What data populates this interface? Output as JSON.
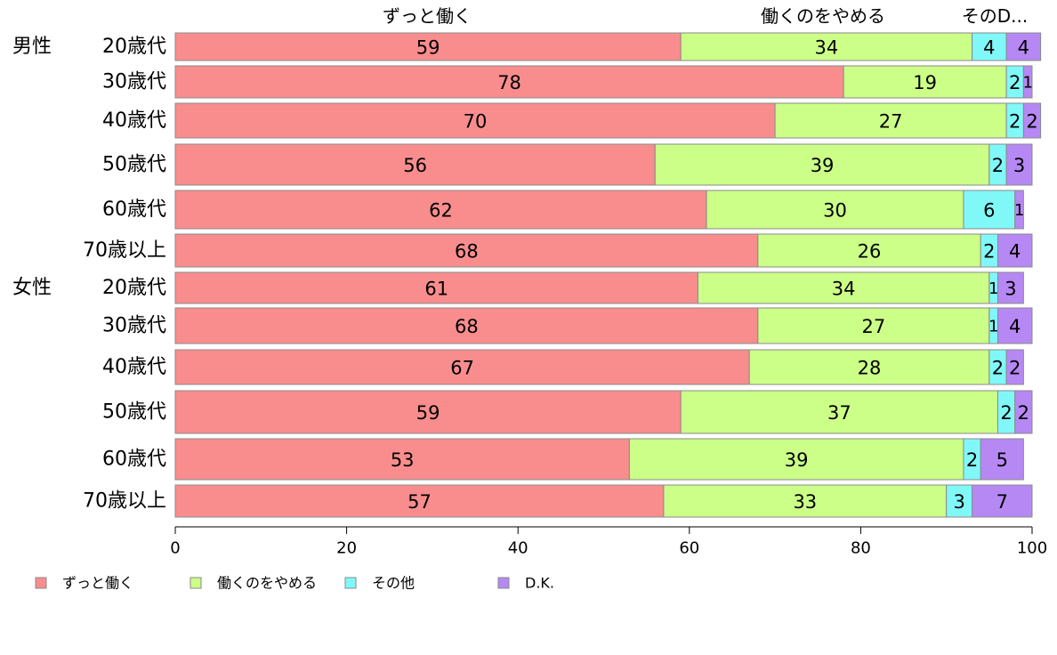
{
  "chart_data": {
    "type": "bar",
    "orientation": "horizontal",
    "stacked": true,
    "xlim": [
      0,
      100
    ],
    "xticks": [
      "0",
      "20",
      "40",
      "60",
      "80",
      "100"
    ],
    "top_labels": [
      "ずっと働く",
      "働くのをやめる",
      "そのD..."
    ],
    "groups": [
      {
        "name": "男性",
        "row_index": 0
      },
      {
        "name": "女性",
        "row_index": 6
      }
    ],
    "categories": [
      "20歳代",
      "30歳代",
      "40歳代",
      "50歳代",
      "60歳代",
      "70歳以上",
      "20歳代",
      "30歳代",
      "40歳代",
      "50歳代",
      "60歳代",
      "70歳以上"
    ],
    "series": [
      {
        "name": "ずっと働く",
        "color": "#f98d8d",
        "values": [
          59,
          78,
          70,
          56,
          62,
          68,
          61,
          68,
          67,
          59,
          53,
          57
        ],
        "labels": [
          "59",
          "78",
          "70",
          "56",
          "62",
          "68",
          "61",
          "68",
          "67",
          "59",
          "53",
          "57"
        ]
      },
      {
        "name": "働くのをやめる",
        "color": "#ccff88",
        "values": [
          34,
          19,
          27,
          39,
          30,
          26,
          34,
          27,
          28,
          37,
          39,
          33
        ],
        "labels": [
          "34",
          "19",
          "27",
          "39",
          "30",
          "26",
          "34",
          "27",
          "28",
          "37",
          "39",
          "33"
        ]
      },
      {
        "name": "その他",
        "color": "#80f8f8",
        "values": [
          4,
          2,
          2,
          2,
          6,
          2,
          1,
          1,
          2,
          2,
          2,
          3
        ],
        "labels": [
          "4",
          "2",
          "2",
          "2",
          "6",
          "2",
          "1",
          "1",
          "2",
          "2",
          "2",
          "3"
        ]
      },
      {
        "name": "D.K.",
        "color": "#b688f4",
        "values": [
          4,
          1,
          2,
          3,
          1,
          4,
          3,
          4,
          2,
          2,
          5,
          7
        ],
        "labels": [
          "4",
          "1",
          "2",
          "3",
          "1",
          "4",
          "3",
          "4",
          "2",
          "2",
          "5",
          "7"
        ]
      }
    ],
    "legend_position": "bottom-left",
    "grid": false
  }
}
